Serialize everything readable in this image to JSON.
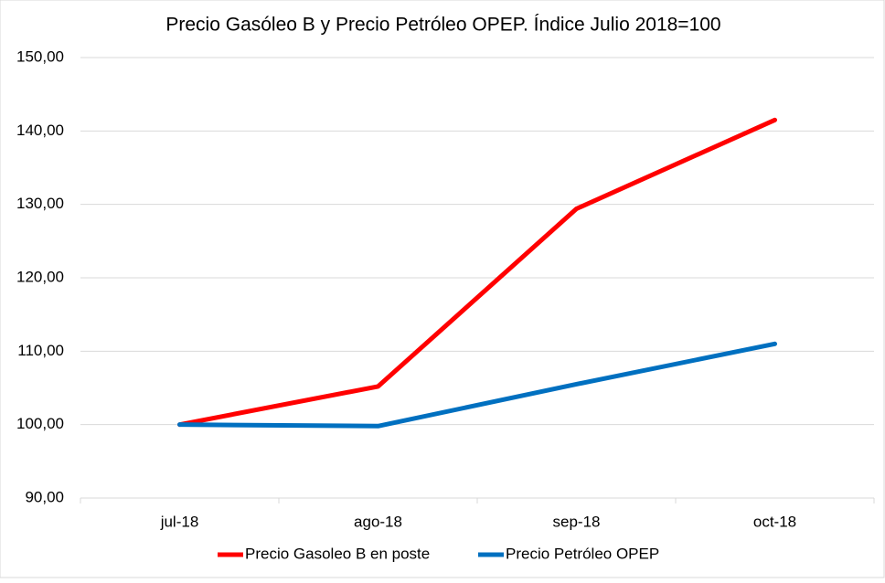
{
  "chart_data": {
    "type": "line",
    "title": "Precio Gasóleo B y Precio Petróleo OPEP. Índice Julio 2018=100",
    "categories": [
      "jul-18",
      "ago-18",
      "sep-18",
      "oct-18"
    ],
    "series": [
      {
        "name": "Precio Gasoleo B en poste",
        "color": "#ff0000",
        "values": [
          100,
          105.2,
          129.4,
          141.5
        ]
      },
      {
        "name": "Precio Petróleo OPEP",
        "color": "#0070c0",
        "values": [
          100,
          99.8,
          105.5,
          111.0
        ]
      }
    ],
    "ylim": [
      90,
      150
    ],
    "yticks": [
      {
        "value": 90,
        "label": "90,00"
      },
      {
        "value": 100,
        "label": "100,00"
      },
      {
        "value": 110,
        "label": "110,00"
      },
      {
        "value": 120,
        "label": "120,00"
      },
      {
        "value": 130,
        "label": "130,00"
      },
      {
        "value": 140,
        "label": "140,00"
      },
      {
        "value": 150,
        "label": "150,00"
      }
    ],
    "grid": true,
    "legend": "bottom"
  }
}
